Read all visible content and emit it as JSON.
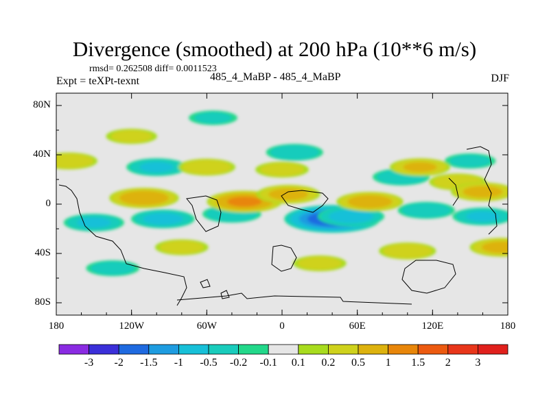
{
  "header": {
    "title": "Divergence (smoothed) at 200 hPa (10**6 m/s)",
    "stats": "rmsd= 0.262508 diff= 0.0011523",
    "experiment": "Expt = teXPt-texnt",
    "case": "485_4_MaBP - 485_4_MaBP",
    "season": "DJF"
  },
  "chart_data": {
    "type": "heatmap",
    "title": "Divergence (smoothed) at 200 hPa (10**6 m/s)",
    "xlabel": "",
    "ylabel": "",
    "x_range": [
      -180,
      180
    ],
    "y_range": [
      -90,
      90
    ],
    "x_ticks": [
      {
        "value": -180,
        "label": "180"
      },
      {
        "value": -120,
        "label": "120W"
      },
      {
        "value": -60,
        "label": "60W"
      },
      {
        "value": 0,
        "label": "0"
      },
      {
        "value": 60,
        "label": "60E"
      },
      {
        "value": 120,
        "label": "120E"
      },
      {
        "value": 180,
        "label": "180"
      }
    ],
    "y_ticks": [
      {
        "value": 80,
        "label": "80N"
      },
      {
        "value": 40,
        "label": "40N"
      },
      {
        "value": 0,
        "label": "0"
      },
      {
        "value": -40,
        "label": "40S"
      },
      {
        "value": -80,
        "label": "80S"
      }
    ],
    "colorbar": {
      "labels": [
        "-3",
        "-2",
        "-1.5",
        "-1",
        "-0.5",
        "-0.2",
        "-0.1",
        "0.1",
        "0.2",
        "0.5",
        "1",
        "1.5",
        "2",
        "3"
      ],
      "colors": [
        "#8a2be2",
        "#3b2fd9",
        "#1f6ae0",
        "#1e9ce0",
        "#17c0d8",
        "#19ccbc",
        "#22d88a",
        "#e6e6e6",
        "#a8dc1e",
        "#cfd21c",
        "#ddb20e",
        "#e8860a",
        "#ec5a10",
        "#e8361a",
        "#e0201c"
      ]
    },
    "blobs": [
      {
        "lon": 40,
        "lat": -12,
        "value": -1.8
      },
      {
        "lon": 55,
        "lat": -10,
        "value": -0.7
      },
      {
        "lon": -95,
        "lat": -12,
        "value": -0.6
      },
      {
        "lon": -150,
        "lat": -15,
        "value": -0.5
      },
      {
        "lon": -40,
        "lat": -8,
        "value": -0.45
      },
      {
        "lon": 160,
        "lat": -10,
        "value": -0.5
      },
      {
        "lon": 115,
        "lat": -5,
        "value": -0.4
      },
      {
        "lon": -100,
        "lat": 30,
        "value": -0.5
      },
      {
        "lon": 10,
        "lat": 42,
        "value": -0.4
      },
      {
        "lon": 95,
        "lat": 22,
        "value": -0.4
      },
      {
        "lon": -135,
        "lat": -52,
        "value": -0.3
      },
      {
        "lon": -55,
        "lat": 70,
        "value": -0.2
      },
      {
        "lon": 150,
        "lat": 35,
        "value": -0.25
      },
      {
        "lon": -30,
        "lat": 2,
        "value": 1.0
      },
      {
        "lon": -110,
        "lat": 5,
        "value": 0.8
      },
      {
        "lon": 5,
        "lat": 8,
        "value": 0.6
      },
      {
        "lon": 70,
        "lat": 2,
        "value": 0.7
      },
      {
        "lon": -60,
        "lat": 30,
        "value": 0.4
      },
      {
        "lon": 110,
        "lat": 30,
        "value": 0.5
      },
      {
        "lon": 140,
        "lat": 18,
        "value": 0.4
      },
      {
        "lon": -170,
        "lat": 35,
        "value": 0.4
      },
      {
        "lon": 160,
        "lat": 10,
        "value": 0.6
      },
      {
        "lon": 100,
        "lat": -38,
        "value": 0.4
      },
      {
        "lon": -80,
        "lat": -35,
        "value": 0.3
      },
      {
        "lon": 30,
        "lat": -48,
        "value": 0.3
      },
      {
        "lon": 0,
        "lat": 28,
        "value": 0.3
      },
      {
        "lon": -120,
        "lat": 55,
        "value": 0.25
      },
      {
        "lon": 175,
        "lat": -35,
        "value": 0.6
      }
    ]
  }
}
